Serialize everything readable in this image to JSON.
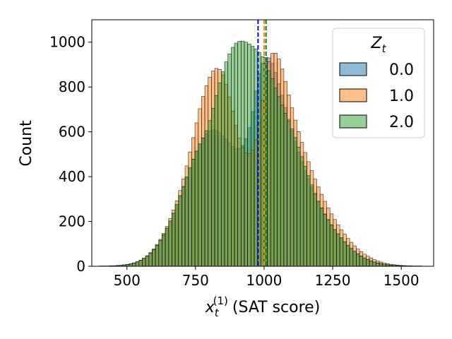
{
  "chart_data": {
    "type": "histogram",
    "xlabel": "(SAT score)",
    "xlabel_math": "x",
    "xlabel_sub": "t",
    "xlabel_sup": "(1)",
    "ylabel": "Count",
    "xlim": [
      372,
      1618
    ],
    "ylim": [
      0,
      1100
    ],
    "xticks": [
      500,
      750,
      1000,
      1250,
      1500
    ],
    "yticks": [
      0,
      200,
      400,
      600,
      800,
      1000
    ],
    "bin_start": 400,
    "bin_width": 12,
    "legend": {
      "title_math": "Z",
      "title_sub": "t",
      "placement": "top-right",
      "entries": [
        "0.0",
        "1.0",
        "2.0"
      ]
    },
    "series": [
      {
        "name": "0.0",
        "color": "#1f77b4",
        "values": [
          1,
          1,
          1,
          2,
          2,
          3,
          4,
          6,
          8,
          11,
          15,
          20,
          27,
          35,
          46,
          59,
          75,
          93,
          116,
          141,
          170,
          202,
          237,
          275,
          315,
          356,
          398,
          439,
          478,
          514,
          546,
          572,
          592,
          604,
          609,
          606,
          597,
          583,
          567,
          550,
          535,
          526,
          526,
          539,
          569,
          619,
          690,
          782,
          860,
          905,
          932,
          930,
          905,
          865,
          815,
          763,
          709,
          656,
          604,
          556,
          510,
          467,
          427,
          389,
          354,
          321,
          290,
          261,
          234,
          209,
          185,
          163,
          143,
          124,
          107,
          91,
          77,
          65,
          54,
          45,
          37,
          30,
          24,
          19,
          15,
          12,
          9,
          7,
          5,
          4,
          3,
          2,
          2,
          1,
          1,
          1,
          1,
          1
        ]
      },
      {
        "name": "1.0",
        "color": "#ff7f0e",
        "values": [
          1,
          1,
          1,
          1,
          2,
          3,
          4,
          6,
          8,
          11,
          15,
          20,
          27,
          36,
          47,
          61,
          77,
          97,
          120,
          147,
          178,
          213,
          251,
          292,
          338,
          390,
          448,
          510,
          574,
          640,
          703,
          758,
          806,
          844,
          871,
          883,
          878,
          854,
          812,
          756,
          692,
          628,
          572,
          530,
          506,
          502,
          518,
          563,
          639,
          740,
          841,
          913,
          950,
          951,
          925,
          880,
          825,
          765,
          707,
          652,
          601,
          553,
          508,
          467,
          427,
          389,
          354,
          321,
          290,
          261,
          234,
          209,
          185,
          163,
          143,
          124,
          107,
          91,
          77,
          65,
          54,
          45,
          37,
          30,
          24,
          19,
          15,
          12,
          9,
          7,
          5,
          4,
          3,
          2,
          2,
          1,
          1,
          1
        ]
      },
      {
        "name": "2.0",
        "color": "#2ca02c",
        "values": [
          1,
          1,
          1,
          2,
          2,
          3,
          4,
          6,
          8,
          11,
          15,
          20,
          27,
          35,
          46,
          59,
          75,
          93,
          116,
          141,
          170,
          202,
          237,
          275,
          315,
          356,
          398,
          439,
          478,
          514,
          546,
          573,
          605,
          650,
          705,
          762,
          818,
          868,
          912,
          948,
          977,
          996,
          1004,
          1005,
          1000,
          992,
          982,
          970,
          955,
          935,
          907,
          873,
          836,
          796,
          757,
          719,
          683,
          649,
          613,
          574,
          532,
          489,
          446,
          404,
          363,
          325,
          290,
          259,
          231,
          206,
          184,
          164,
          145,
          127,
          110,
          94,
          80,
          67,
          56,
          46,
          37,
          30,
          24,
          19,
          15,
          12,
          9,
          7,
          5,
          4,
          3,
          2,
          2,
          1,
          1,
          1,
          1,
          1
        ]
      }
    ],
    "vlines": [
      {
        "x": 978,
        "color": "#0000ff",
        "style": "dashed"
      },
      {
        "x": 1000,
        "color": "#ff7f0e",
        "style": "dashed"
      },
      {
        "x": 1007,
        "color": "#008000",
        "style": "dashed"
      }
    ]
  }
}
